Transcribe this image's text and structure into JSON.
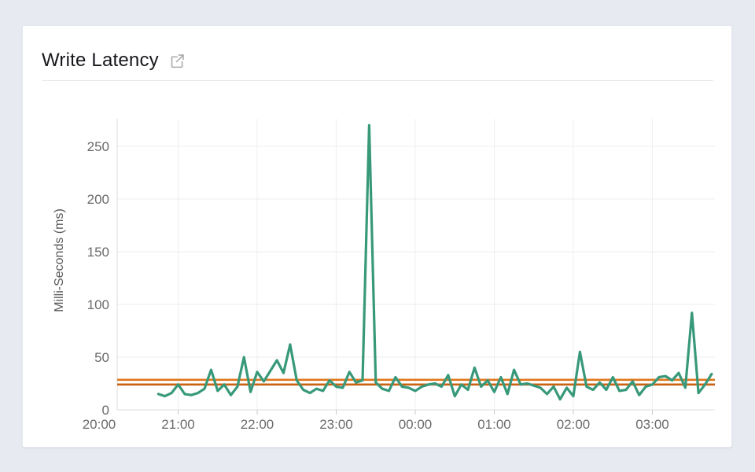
{
  "page": {
    "background_color": "#e7eaf1",
    "card_background": "#ffffff"
  },
  "header": {
    "title": "Write Latency",
    "icon": "external-link-icon",
    "icon_color": "#a9a9a9"
  },
  "chart_data": {
    "type": "line",
    "title": "Write Latency",
    "xlabel": "",
    "ylabel": "Milli-Seconds (ms)",
    "ylim": [
      0,
      283
    ],
    "yticks": [
      0,
      50,
      100,
      150,
      200,
      250
    ],
    "xticks": [
      "20:00",
      "21:00",
      "22:00",
      "23:00",
      "00:00",
      "01:00",
      "02:00",
      "03:00"
    ],
    "grid": true,
    "legend_position": "none",
    "tick_label_color": "#6b6b6b",
    "series": [
      {
        "name": "write-latency-ms",
        "color": "#38997a",
        "x": [
          "20:45",
          "20:50",
          "20:55",
          "21:00",
          "21:05",
          "21:10",
          "21:15",
          "21:20",
          "21:25",
          "21:30",
          "21:35",
          "21:40",
          "21:45",
          "21:50",
          "21:55",
          "22:00",
          "22:05",
          "22:10",
          "22:15",
          "22:20",
          "22:25",
          "22:30",
          "22:35",
          "22:40",
          "22:45",
          "22:50",
          "22:55",
          "23:00",
          "23:05",
          "23:10",
          "23:15",
          "23:20",
          "23:25",
          "23:30",
          "23:35",
          "23:40",
          "23:45",
          "23:50",
          "23:55",
          "00:00",
          "00:05",
          "00:10",
          "00:15",
          "00:20",
          "00:25",
          "00:30",
          "00:35",
          "00:40",
          "00:45",
          "00:50",
          "00:55",
          "01:00",
          "01:05",
          "01:10",
          "01:15",
          "01:20",
          "01:25",
          "01:30",
          "01:35",
          "01:40",
          "01:45",
          "01:50",
          "01:55",
          "02:00",
          "02:05",
          "02:10",
          "02:15",
          "02:20",
          "02:25",
          "02:30",
          "02:35",
          "02:40",
          "02:45",
          "02:50",
          "02:55",
          "03:00",
          "03:05",
          "03:10",
          "03:15",
          "03:20",
          "03:25",
          "03:30",
          "03:35",
          "03:40",
          "03:45"
        ],
        "values": [
          15,
          13,
          16,
          24,
          15,
          14,
          16,
          20,
          38,
          18,
          24,
          14,
          22,
          50,
          17,
          36,
          27,
          37,
          47,
          35,
          62,
          28,
          19,
          16,
          20,
          18,
          28,
          22,
          21,
          36,
          26,
          28,
          270,
          26,
          20,
          18,
          31,
          22,
          21,
          18,
          22,
          24,
          25,
          22,
          33,
          13,
          24,
          19,
          40,
          22,
          28,
          17,
          31,
          15,
          38,
          24,
          25,
          23,
          21,
          15,
          22,
          10,
          21,
          13,
          55,
          22,
          19,
          26,
          19,
          31,
          18,
          19,
          27,
          14,
          22,
          24,
          31,
          32,
          28,
          35,
          21,
          92,
          16,
          24,
          34
        ]
      }
    ],
    "threshold_lines": [
      {
        "name": "upper-threshold",
        "value": 28.5,
        "color": "#e0751c"
      },
      {
        "name": "lower-threshold",
        "value": 24,
        "color": "#c96212"
      }
    ]
  }
}
